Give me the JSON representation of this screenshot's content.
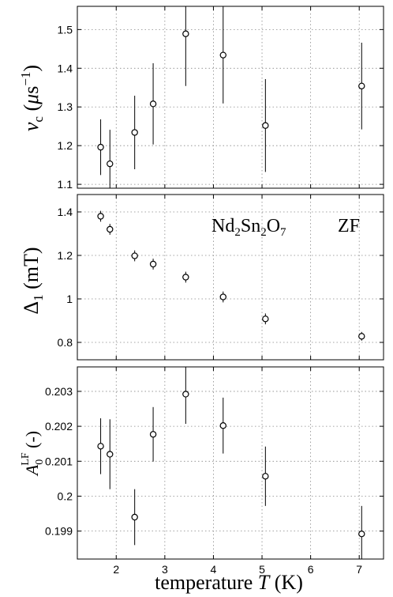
{
  "figure": {
    "xlabel": "temperature T (K)",
    "annotation": "Nd2Sn2O7",
    "annotation_tag": "ZF"
  },
  "chart_data": [
    {
      "type": "scatter",
      "ylabel": "νc (μs−1)",
      "xlim": [
        1.2,
        7.5
      ],
      "ylim": [
        1.09,
        1.56
      ],
      "xticks": [
        2,
        3,
        4,
        5,
        6,
        7
      ],
      "yticks": [
        1.1,
        1.2,
        1.3,
        1.4,
        1.5
      ],
      "ytick_labels": [
        "1.1",
        "1.2",
        "1.3",
        "1.4",
        "1.5"
      ],
      "grid": true,
      "series": [
        {
          "x": [
            1.68,
            1.87,
            2.38,
            2.76,
            3.43,
            4.2,
            5.07,
            7.05
          ],
          "y": [
            1.196,
            1.153,
            1.234,
            1.308,
            1.489,
            1.434,
            1.252,
            1.354
          ],
          "yerr": [
            0.072,
            0.088,
            0.095,
            0.105,
            0.135,
            0.125,
            0.12,
            0.112
          ]
        }
      ]
    },
    {
      "type": "scatter",
      "ylabel": "Δ1 (mT)",
      "xlim": [
        1.2,
        7.5
      ],
      "ylim": [
        0.72,
        1.48
      ],
      "xticks": [
        2,
        3,
        4,
        5,
        6,
        7
      ],
      "yticks": [
        0.8,
        1.0,
        1.2,
        1.4
      ],
      "ytick_labels": [
        "0.8",
        "1",
        "1.2",
        "1.4"
      ],
      "grid": true,
      "series": [
        {
          "x": [
            1.68,
            1.87,
            2.38,
            2.76,
            3.43,
            4.2,
            5.07,
            7.05
          ],
          "y": [
            1.38,
            1.32,
            1.198,
            1.16,
            1.1,
            1.009,
            0.908,
            0.828
          ],
          "yerr": [
            0.025,
            0.025,
            0.025,
            0.025,
            0.025,
            0.025,
            0.025,
            0.02
          ]
        }
      ]
    },
    {
      "type": "scatter",
      "ylabel": "A0LF (-)",
      "xlim": [
        1.2,
        7.5
      ],
      "ylim": [
        0.1982,
        0.2037
      ],
      "xticks": [
        2,
        3,
        4,
        5,
        6,
        7
      ],
      "yticks": [
        0.199,
        0.2,
        0.201,
        0.202,
        0.203
      ],
      "ytick_labels": [
        "0.199",
        "0.2",
        "0.201",
        "0.202",
        "0.203"
      ],
      "grid": true,
      "series": [
        {
          "x": [
            1.68,
            1.87,
            2.38,
            2.76,
            3.43,
            4.2,
            5.07,
            7.05
          ],
          "y": [
            0.20143,
            0.2012,
            0.1994,
            0.20177,
            0.20292,
            0.20202,
            0.20057,
            0.19892
          ],
          "yerr": [
            0.0008,
            0.001,
            0.0008,
            0.00078,
            0.00085,
            0.0008,
            0.00085,
            0.0008
          ]
        }
      ]
    }
  ]
}
